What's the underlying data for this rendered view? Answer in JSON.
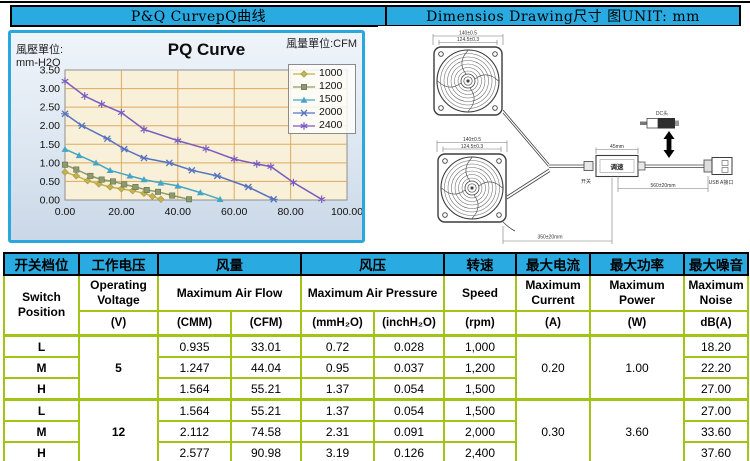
{
  "colors": {
    "accent_cyan": "#29abe2",
    "table_grid_green": "#a2c318",
    "plot_background": "#f8f0d8",
    "plot_grid": "#ddaa62"
  },
  "header": {
    "left_title": "P&Q CurvepQ曲线",
    "right_title": "Dimensios Drawing尺寸 图UNIT: mm"
  },
  "chart": {
    "title": "PQ Curve",
    "flow_unit_label": "風量單位:CFM",
    "pressure_unit_label": "風壓單位:\nmm-H2O"
  },
  "chart_data": {
    "type": "line",
    "title": "PQ Curve",
    "xlabel": "風量單位:CFM",
    "ylabel": "風壓單位: mm-H2O",
    "xlim": [
      0,
      100
    ],
    "ylim": [
      0,
      3.5
    ],
    "x_ticks": [
      "0.00",
      "20.00",
      "40.00",
      "60.00",
      "80.00",
      "100.00"
    ],
    "y_ticks": [
      "0.00",
      "0.50",
      "1.00",
      "1.50",
      "2.00",
      "2.50",
      "3.00",
      "3.50"
    ],
    "grid": true,
    "legend_position": "top-right",
    "series": [
      {
        "name": "1000",
        "marker": "diamond",
        "color": "#c3b24a",
        "points": [
          [
            0,
            0.75
          ],
          [
            4,
            0.65
          ],
          [
            8,
            0.52
          ],
          [
            12,
            0.43
          ],
          [
            16,
            0.35
          ],
          [
            20,
            0.3
          ],
          [
            24,
            0.25
          ],
          [
            28,
            0.18
          ],
          [
            31,
            0.1
          ],
          [
            34,
            0.02
          ]
        ]
      },
      {
        "name": "1200",
        "marker": "square",
        "color": "#8d9b6a",
        "points": [
          [
            0,
            0.95
          ],
          [
            4,
            0.82
          ],
          [
            9,
            0.65
          ],
          [
            13,
            0.55
          ],
          [
            17,
            0.5
          ],
          [
            21,
            0.42
          ],
          [
            25,
            0.35
          ],
          [
            29,
            0.27
          ],
          [
            33,
            0.22
          ],
          [
            38,
            0.12
          ],
          [
            44,
            0.02
          ]
        ]
      },
      {
        "name": "1500",
        "marker": "triangle",
        "color": "#45a5c6",
        "points": [
          [
            0,
            1.37
          ],
          [
            5,
            1.2
          ],
          [
            11,
            1.0
          ],
          [
            16,
            0.8
          ],
          [
            23,
            0.65
          ],
          [
            28,
            0.55
          ],
          [
            34,
            0.46
          ],
          [
            40,
            0.38
          ],
          [
            48,
            0.2
          ],
          [
            55,
            0.02
          ]
        ]
      },
      {
        "name": "2000",
        "marker": "x",
        "color": "#5873c0",
        "points": [
          [
            0,
            2.32
          ],
          [
            6,
            2.0
          ],
          [
            15,
            1.65
          ],
          [
            21,
            1.37
          ],
          [
            28,
            1.13
          ],
          [
            37,
            1.0
          ],
          [
            45,
            0.8
          ],
          [
            54,
            0.65
          ],
          [
            65,
            0.35
          ],
          [
            74,
            0.02
          ]
        ]
      },
      {
        "name": "2400",
        "marker": "star",
        "color": "#7a5cc0",
        "points": [
          [
            0,
            3.2
          ],
          [
            7,
            2.8
          ],
          [
            13,
            2.58
          ],
          [
            20,
            2.35
          ],
          [
            28,
            1.9
          ],
          [
            40,
            1.6
          ],
          [
            50,
            1.38
          ],
          [
            60,
            1.1
          ],
          [
            68,
            0.97
          ],
          [
            73,
            0.9
          ],
          [
            81,
            0.47
          ],
          [
            91,
            0.02
          ]
        ]
      }
    ]
  },
  "drawing": {
    "fan_outer_dim": "140±0.5",
    "fan_hole_dim": "124.5±0.3",
    "controller_length": "45mm",
    "controller_label": "调速",
    "switch_label": "开关",
    "cable_length": "560±20mm",
    "fan_cable_length": "350±20mm",
    "dc_plug_label": "DC头",
    "usb_label": "USB A接口"
  },
  "table": {
    "cn": [
      "开关档位",
      "工作电压",
      "风量",
      "风压",
      "转速",
      "最大电流",
      "最大功率",
      "最大噪音"
    ],
    "en": [
      "Switch Position",
      "Operating Voltage",
      "Maximum Air Flow",
      "Maximum Air Pressure",
      "Speed",
      "Maximum Current",
      "Maximum Power",
      "Maximum Noise"
    ],
    "units": [
      "(V)",
      "(CMM)",
      "(CFM)",
      "(mmH₂O)",
      "(inchH₂O)",
      "(rpm)",
      "(A)",
      "(W)",
      "dB(A)"
    ],
    "groups": [
      {
        "voltage": "5",
        "current": "0.20",
        "power": "1.00",
        "rows": [
          {
            "pos": "L",
            "cmm": "0.935",
            "cfm": "33.01",
            "mmh2o": "0.72",
            "inchh2o": "0.028",
            "rpm": "1,000",
            "noise": "18.20"
          },
          {
            "pos": "M",
            "cmm": "1.247",
            "cfm": "44.04",
            "mmh2o": "0.95",
            "inchh2o": "0.037",
            "rpm": "1,200",
            "noise": "22.20"
          },
          {
            "pos": "H",
            "cmm": "1.564",
            "cfm": "55.21",
            "mmh2o": "1.37",
            "inchh2o": "0.054",
            "rpm": "1,500",
            "noise": "27.00"
          }
        ]
      },
      {
        "voltage": "12",
        "current": "0.30",
        "power": "3.60",
        "rows": [
          {
            "pos": "L",
            "cmm": "1.564",
            "cfm": "55.21",
            "mmh2o": "1.37",
            "inchh2o": "0.054",
            "rpm": "1,500",
            "noise": "27.00"
          },
          {
            "pos": "M",
            "cmm": "2.112",
            "cfm": "74.58",
            "mmh2o": "2.31",
            "inchh2o": "0.091",
            "rpm": "2,000",
            "noise": "33.60"
          },
          {
            "pos": "H",
            "cmm": "2.577",
            "cfm": "90.98",
            "mmh2o": "3.19",
            "inchh2o": "0.126",
            "rpm": "2,400",
            "noise": "37.60"
          }
        ]
      }
    ]
  }
}
